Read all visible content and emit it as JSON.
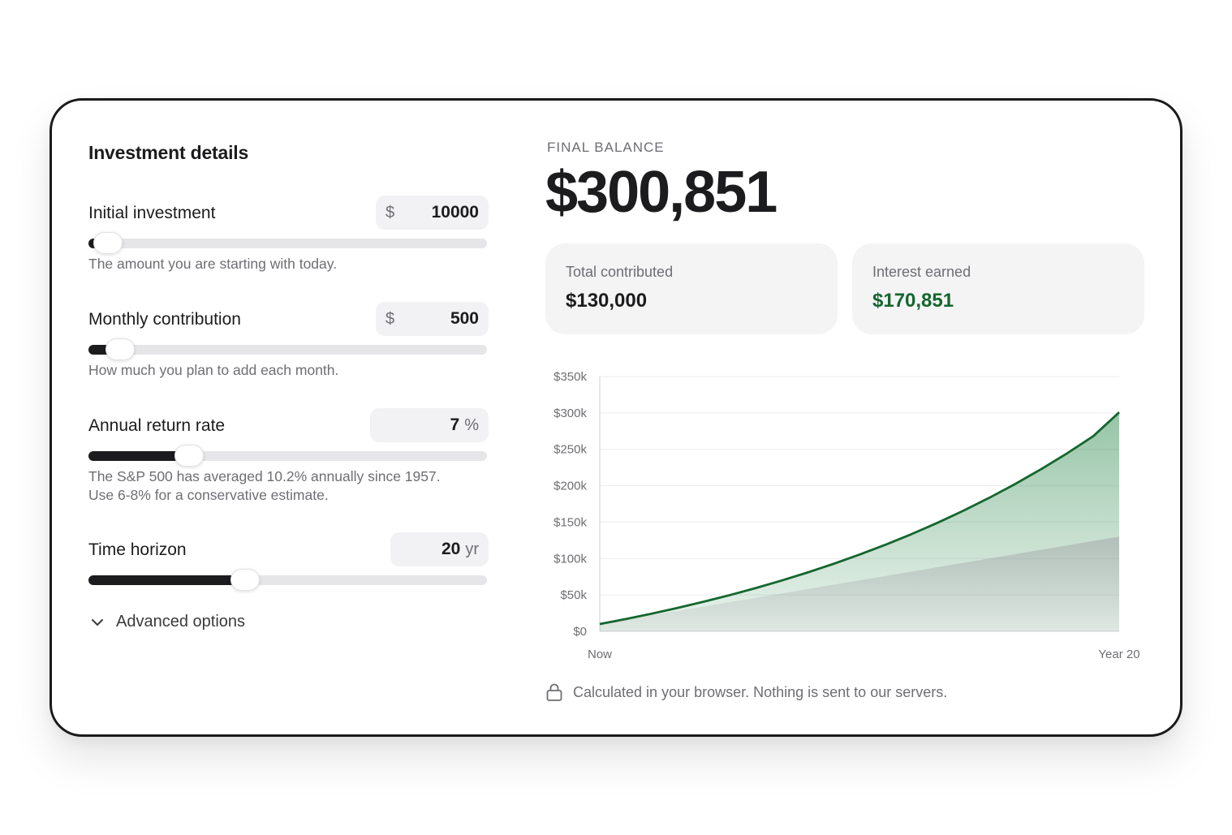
{
  "investment": {
    "title": "Investment details",
    "fields": [
      {
        "label": "Initial investment",
        "prefix": "$",
        "value": "10000",
        "unit": "",
        "help": "The amount you are starting with today.",
        "slider_fraction": 0.01
      },
      {
        "label": "Monthly contribution",
        "prefix": "$",
        "value": "500",
        "unit": "",
        "help": "How much you plan to add each month.",
        "slider_fraction": 0.05
      },
      {
        "label": "Annual return rate",
        "prefix": "",
        "value": "7",
        "unit": "%",
        "help": "The S&P 500 has averaged 10.2% annually since 1957.",
        "help2": "Use 6-8% for a conservative estimate.",
        "slider_fraction": 0.23
      },
      {
        "label": "Time horizon",
        "prefix": "",
        "value": "20",
        "unit": "yr",
        "help": "",
        "slider_fraction": 0.39
      }
    ],
    "advanced_label": "Advanced options"
  },
  "summary": {
    "kicker": "FINAL BALANCE",
    "final_balance": "$300,851",
    "total_contributed_label": "Total contributed",
    "total_contributed": "$130,000",
    "interest_label": "Interest earned",
    "interest": "$170,851"
  },
  "colors": {
    "accent_green": "#15662e",
    "text_dark": "#1c1c1e",
    "muted": "#6e6e73"
  },
  "icons": {
    "advanced": "chevron-down-icon",
    "footnote": "lock-icon"
  },
  "footnote": "Calculated in your browser. Nothing is sent to our servers.",
  "chart_data": {
    "type": "area",
    "x_labels": [
      "Now",
      "Year 20"
    ],
    "x": [
      0,
      1,
      2,
      3,
      4,
      5,
      6,
      7,
      8,
      9,
      10,
      11,
      12,
      13,
      14,
      15,
      16,
      17,
      18,
      19,
      20
    ],
    "ylim": [
      0,
      350000
    ],
    "y_ticks": [
      "$0",
      "$50k",
      "$100k",
      "$150k",
      "$200k",
      "$250k",
      "$300k",
      "$350k"
    ],
    "grid": true,
    "series": [
      {
        "values": [
          10000,
          16900,
          24280,
          32180,
          40640,
          49680,
          59360,
          69720,
          80800,
          92660,
          105350,
          118930,
          133460,
          149000,
          165640,
          183440,
          202480,
          222860,
          244660,
          267990,
          300851
        ]
      },
      {
        "values": [
          10000,
          16000,
          22000,
          28000,
          34000,
          40000,
          46000,
          52000,
          58000,
          64000,
          70000,
          76000,
          82000,
          88000,
          94000,
          100000,
          106000,
          112000,
          118000,
          124000,
          130000
        ]
      }
    ]
  }
}
